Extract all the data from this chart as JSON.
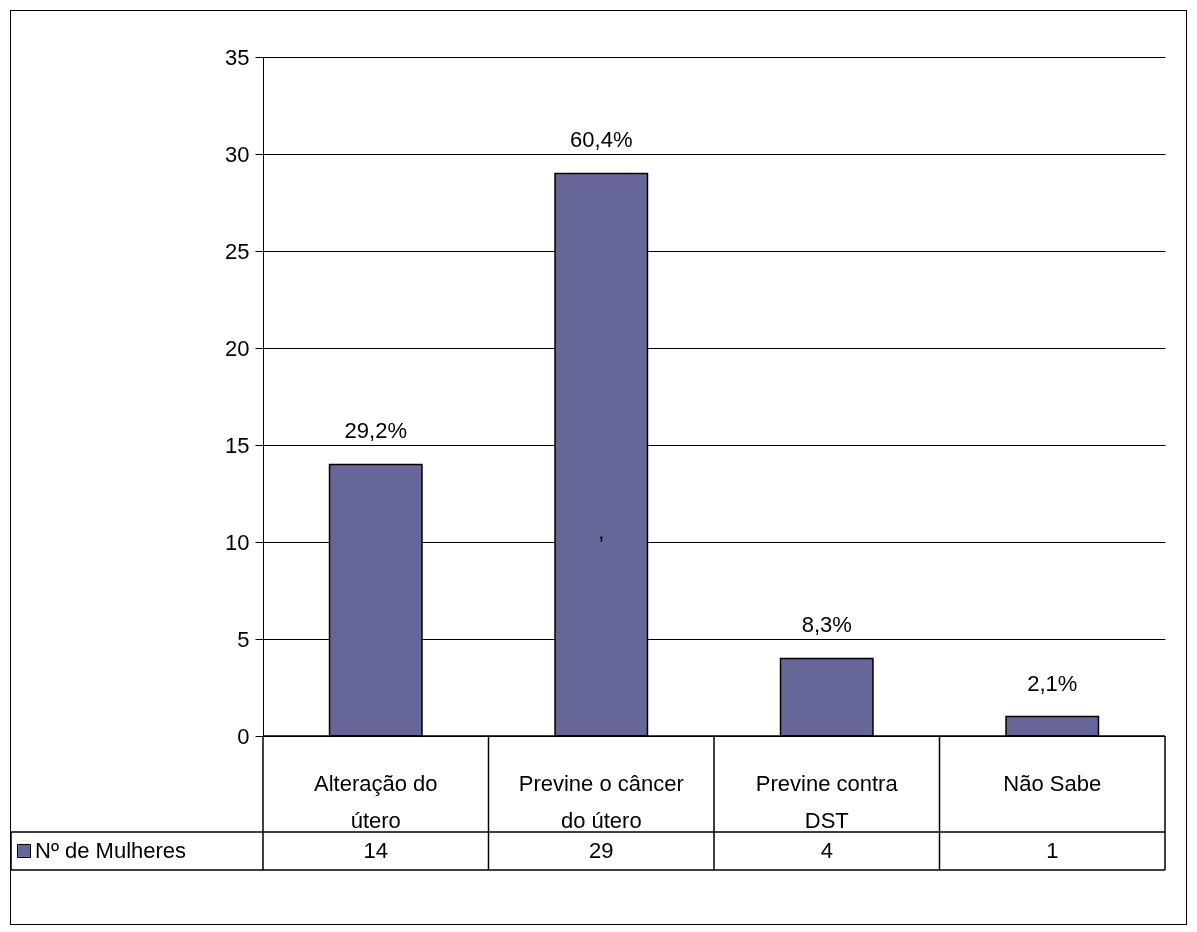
{
  "chart_data": {
    "type": "bar",
    "categories": [
      "Alteração do útero",
      "Previne o câncer do útero",
      "Previne contra DST",
      "Não Sabe"
    ],
    "series": [
      {
        "name": "Nº de Mulheres",
        "color": "#666699",
        "values": [
          14,
          29,
          4,
          1
        ]
      }
    ],
    "ylim": [
      0,
      35
    ],
    "yticks": [
      0,
      5,
      10,
      15,
      20,
      25,
      30,
      35
    ],
    "grid": "y",
    "legend": "bottom",
    "data_labels": true,
    "annotations": [
      {
        "text": "29,2%",
        "x": "Alteração do útero",
        "y": 14
      },
      {
        "text": "60,4%",
        "x": "Previne o câncer do útero",
        "y": 29
      },
      {
        "text": "8,3%",
        "x": "Previne contra DST",
        "y": 4
      },
      {
        "text": "2,1%",
        "x": "Não Sabe",
        "y": 1
      },
      ","
    ]
  }
}
